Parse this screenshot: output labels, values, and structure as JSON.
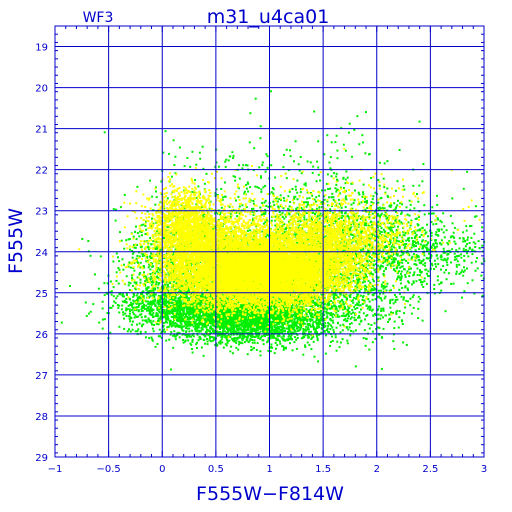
{
  "chart_data": {
    "type": "scatter",
    "title": "m31_u4ca01",
    "subtitle": "WF3",
    "xlabel": "F555W−F814W",
    "ylabel": "F555W",
    "xlim": [
      -1,
      3
    ],
    "ylim": [
      29,
      18.5
    ],
    "y_inverted": true,
    "grid": true,
    "x_ticks": [
      -1,
      -0.5,
      0,
      0.5,
      1,
      1.5,
      2,
      2.5,
      3
    ],
    "x_tick_labels": [
      "−1",
      "−0.5",
      "0",
      "0.5",
      "1",
      "1.5",
      "2",
      "2.5",
      "3"
    ],
    "y_ticks": [
      19,
      20,
      21,
      22,
      23,
      24,
      25,
      26,
      27,
      28,
      29
    ],
    "y_tick_labels": [
      "19",
      "20",
      "21",
      "22",
      "23",
      "24",
      "25",
      "26",
      "27",
      "28",
      "29"
    ],
    "colors": {
      "axes": "#0000cc",
      "grid": "#0000cc",
      "text": "#0000cc"
    },
    "series": [
      {
        "color": "#00ee00",
        "point_count": 9000,
        "clusters": [
          {
            "x": 0.75,
            "y": 25.55,
            "sx": 0.42,
            "sy": 0.32,
            "w": 0.38
          },
          {
            "x": 1.05,
            "y": 24.55,
            "sx": 0.5,
            "sy": 0.6,
            "w": 0.22
          },
          {
            "x": 0.2,
            "y": 24.2,
            "sx": 0.3,
            "sy": 0.7,
            "w": 0.1
          },
          {
            "x": 1.75,
            "y": 23.6,
            "sx": 0.4,
            "sy": 0.55,
            "w": 0.09
          },
          {
            "x": 2.5,
            "y": 24.0,
            "sx": 0.35,
            "sy": 0.4,
            "w": 0.05
          },
          {
            "x": 0.1,
            "y": 25.2,
            "sx": 0.3,
            "sy": 0.25,
            "w": 0.06
          },
          {
            "x": 1.2,
            "y": 22.8,
            "sx": 0.6,
            "sy": 0.9,
            "w": 0.06
          },
          {
            "x": 1.8,
            "y": 25.2,
            "sx": 0.3,
            "sy": 0.5,
            "w": 0.04
          }
        ]
      },
      {
        "color": "#ffff00",
        "point_count": 14000,
        "clusters": [
          {
            "x": 0.95,
            "y": 24.5,
            "sx": 0.35,
            "sy": 0.42,
            "w": 0.5
          },
          {
            "x": 0.45,
            "y": 24.1,
            "sx": 0.3,
            "sy": 0.6,
            "w": 0.22
          },
          {
            "x": 0.2,
            "y": 23.3,
            "sx": 0.15,
            "sy": 0.45,
            "w": 0.08
          },
          {
            "x": 1.4,
            "y": 24.0,
            "sx": 0.3,
            "sy": 0.5,
            "w": 0.14
          },
          {
            "x": 1.8,
            "y": 23.6,
            "sx": 0.3,
            "sy": 0.3,
            "w": 0.03
          },
          {
            "x": 1.6,
            "y": 23.2,
            "sx": 0.45,
            "sy": 0.5,
            "w": 0.03
          }
        ]
      }
    ]
  }
}
